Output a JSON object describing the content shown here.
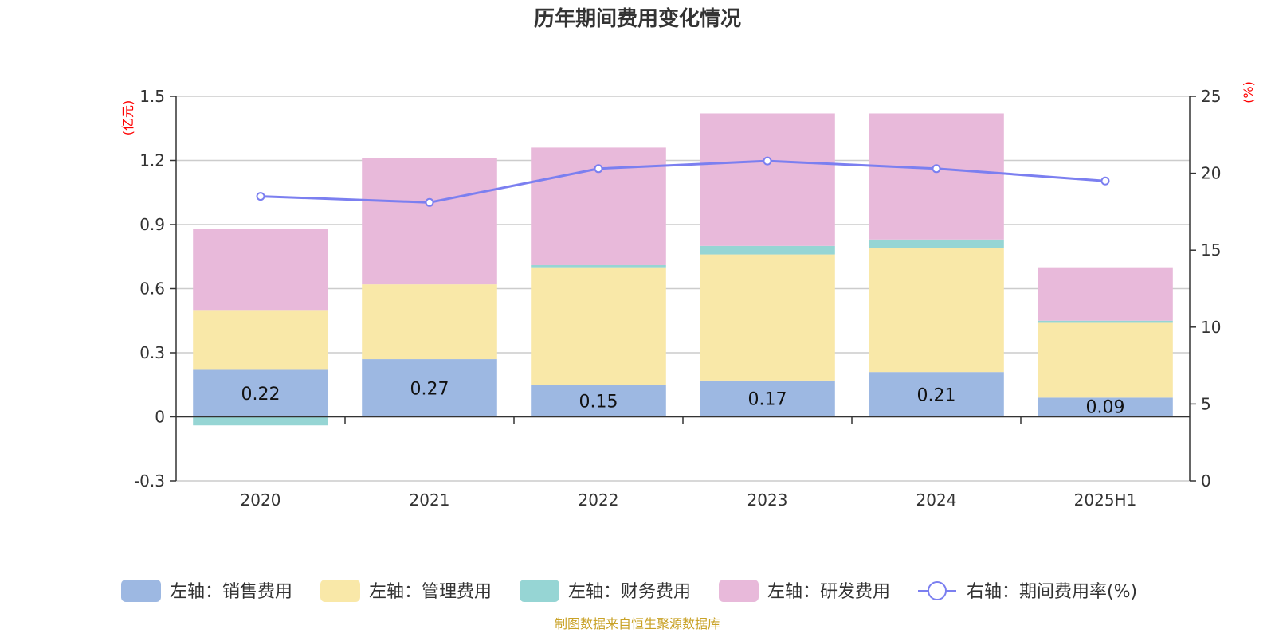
{
  "chart_data": {
    "type": "bar",
    "stacked": true,
    "title": "历年期间费用变化情况",
    "categories": [
      "2020",
      "2021",
      "2022",
      "2023",
      "2024",
      "2025H1"
    ],
    "left_axis": {
      "unit": "(亿元)",
      "ylim": [
        -0.3,
        1.5
      ],
      "ticks": [
        -0.3,
        0,
        0.3,
        0.6,
        0.9,
        1.2,
        1.5
      ],
      "tick_labels": [
        "-0.3",
        "0",
        "0.3",
        "0.6",
        "0.9",
        "1.2",
        "1.5"
      ]
    },
    "right_axis": {
      "unit": "(%)",
      "ylim": [
        0,
        25
      ],
      "ticks": [
        0,
        5,
        10,
        15,
        20,
        25
      ],
      "tick_labels": [
        "0",
        "5",
        "10",
        "15",
        "20",
        "25"
      ]
    },
    "series": [
      {
        "name": "左轴：销售费用",
        "axis": "left",
        "color": "#9db8e2",
        "values": [
          0.22,
          0.27,
          0.15,
          0.17,
          0.21,
          0.09
        ],
        "labels": [
          "0.22",
          "0.27",
          "0.15",
          "0.17",
          "0.21",
          "0.09"
        ]
      },
      {
        "name": "左轴：管理费用",
        "axis": "left",
        "color": "#f9e8a8",
        "values": [
          0.28,
          0.35,
          0.55,
          0.59,
          0.58,
          0.35
        ]
      },
      {
        "name": "左轴：财务费用",
        "axis": "left",
        "color": "#96d5d4",
        "values": [
          -0.04,
          0.0,
          0.01,
          0.04,
          0.04,
          0.01
        ]
      },
      {
        "name": "左轴：研发费用",
        "axis": "left",
        "color": "#e8b9da",
        "values": [
          0.38,
          0.59,
          0.55,
          0.62,
          0.59,
          0.25
        ]
      },
      {
        "name": "右轴：期间费用率(%)",
        "type": "line",
        "axis": "right",
        "color": "#7b7ff0",
        "values": [
          18.5,
          18.1,
          20.3,
          20.8,
          20.3,
          19.5
        ]
      }
    ],
    "grid": true,
    "legend_position": "bottom",
    "source_note": "制图数据来自恒生聚源数据库"
  }
}
